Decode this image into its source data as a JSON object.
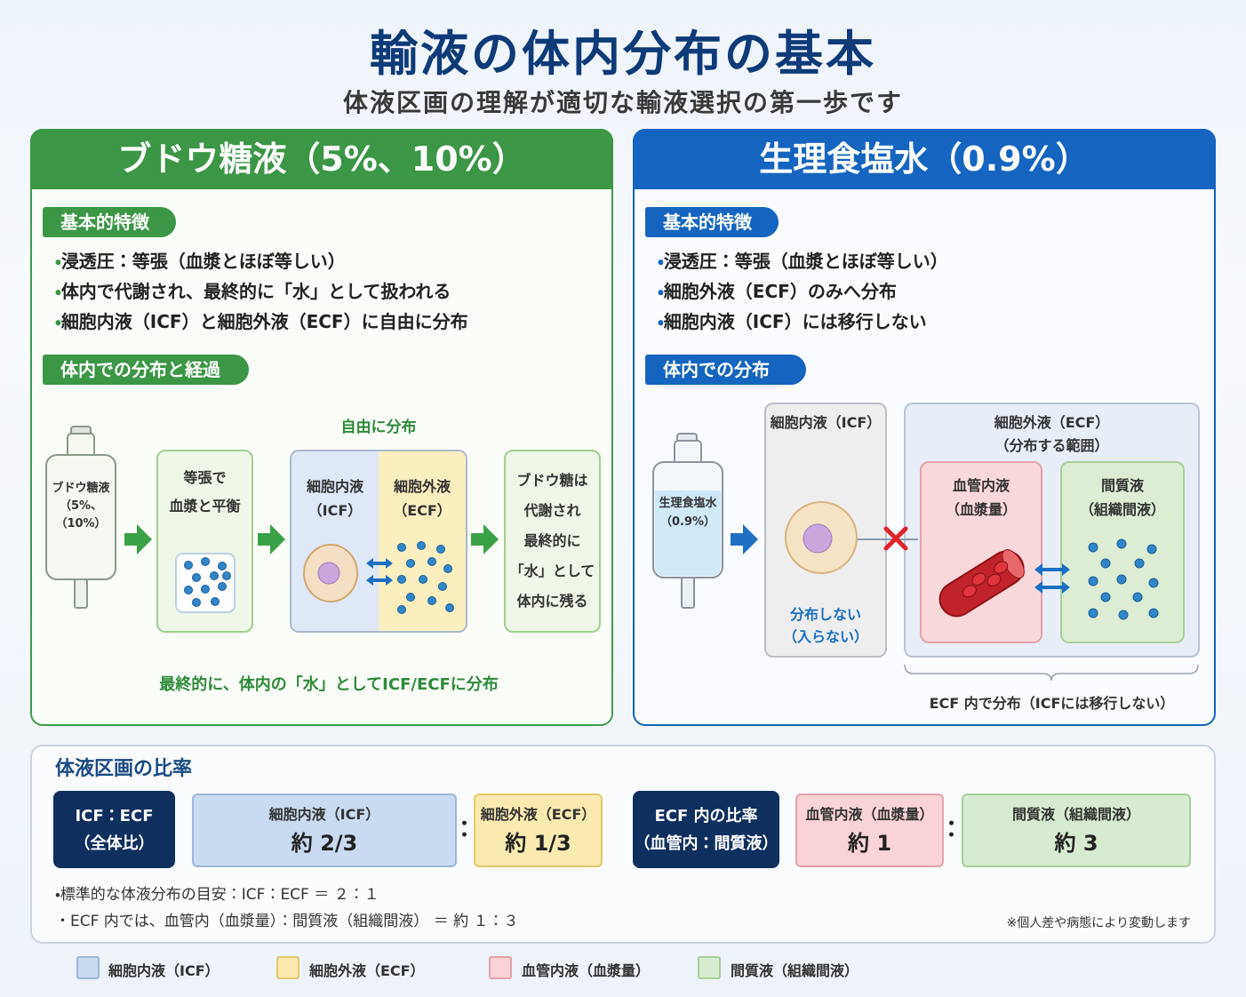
{
  "header": {
    "title": "輸液の体内分布の基本",
    "subtitle": "体液区画の理解が適切な輸液選択の第一歩です"
  },
  "glucose": {
    "title": "ブドウ糖液（5%、10%）",
    "features_tag": "基本的特徴",
    "features": [
      "浸透圧：等張（血漿とほぼ等しい）",
      "体内で代謝され、最終的に「水」として扱われる",
      "細胞内液（ICF）と細胞外液（ECF）に自由に分布"
    ],
    "flow_tag": "体内での分布と経過",
    "bag": [
      "ブドウ糖液",
      "（5%、",
      "（10%）"
    ],
    "step1": [
      "等張で",
      "血漿と平衡"
    ],
    "free": "自由に分布",
    "icf": [
      "細胞内液",
      "（ICF）"
    ],
    "ecf": [
      "細胞外液",
      "（ECF）"
    ],
    "step3": [
      "ブドウ糖は",
      "代謝され",
      "最終的に",
      "「水」として",
      "体内に残る"
    ],
    "caption": "最終的に、体内の「水」としてICF/ECFに分布"
  },
  "saline": {
    "title": "生理食塩水（0.9%）",
    "features_tag": "基本的特徴",
    "features": [
      "浸透圧：等張（血漿とほぼ等しい）",
      "細胞外液（ECF）のみへ分布",
      "細胞内液（ICF）には移行しない"
    ],
    "flow_tag": "体内での分布",
    "bag": [
      "生理食塩水",
      "（0.9%）"
    ],
    "icf": "細胞内液（ICF）",
    "icf_note": [
      "分布しない",
      "（入らない）"
    ],
    "ecf": [
      "細胞外液（ECF）",
      "（分布する範囲）"
    ],
    "plasma": [
      "血管内液",
      "（血漿量）"
    ],
    "interstitial": [
      "間質液",
      "（組織間液）"
    ],
    "caption": "ECF 内で分布（ICFには移行しない）"
  },
  "ratio": {
    "title": "体液区画の比率",
    "separator": "：",
    "groups": [
      {
        "label": [
          "ICF：ECF",
          "（全体比）"
        ],
        "parts": [
          {
            "name": "細胞内液（ICF）",
            "value": "約 2/3"
          },
          {
            "name": "細胞外液（ECF）",
            "value": "約 1/3"
          }
        ]
      },
      {
        "label": [
          "ECF 内の比率",
          "（血管内：間質液）"
        ],
        "parts": [
          {
            "name": "血管内液（血漿量）",
            "value": "約 1"
          },
          {
            "name": "間質液（組織間液）",
            "value": "約 3"
          }
        ]
      }
    ],
    "notes": [
      "・標準的な体液分布の目安：ICF：ECF ＝ ２：１",
      "・ECF 内では、血管内（血漿量）：間質液（組織間液） ＝ 約 １：３"
    ],
    "footnote": "※個人差や病態により変動します"
  },
  "legend": [
    "細胞内液（ICF）",
    "細胞外液（ECF）",
    "血管内液（血漿量）",
    "間質液（組織間液）"
  ]
}
